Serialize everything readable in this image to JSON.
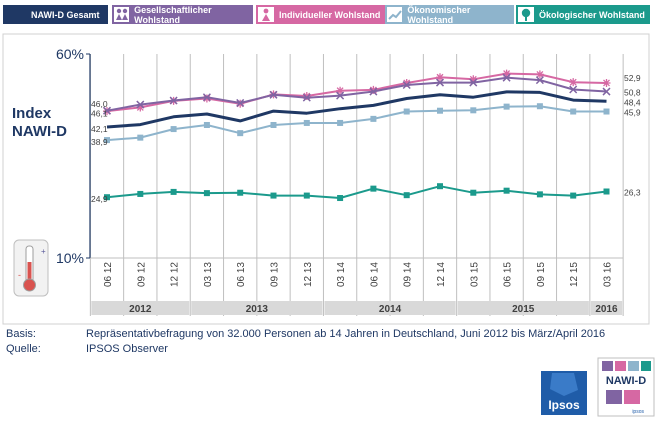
{
  "legend": [
    {
      "label": "NAWI-D Gesamt",
      "color": "#1f3864",
      "icon": "none"
    },
    {
      "label": "Gesellschaftlicher Wohlstand",
      "color": "#8064a2",
      "icon": "people-icon"
    },
    {
      "label": "Individueller Wohlstand",
      "color": "#d668a3",
      "icon": "person-icon"
    },
    {
      "label": "Ökonomischer Wohlstand",
      "color": "#8eb4cc",
      "icon": "trend-icon"
    },
    {
      "label": "Ökologischer Wohlstand",
      "color": "#1b9a8c",
      "icon": "tree-icon"
    }
  ],
  "chart_data": {
    "type": "line",
    "ylabel": "Index NAWI-D",
    "yunit": "%",
    "ylim": [
      10,
      60
    ],
    "ytick_labels": [
      "60%",
      "10%"
    ],
    "categories": [
      "06 12",
      "09 12",
      "12 12",
      "03 13",
      "06 13",
      "09 13",
      "12 13",
      "03 14",
      "06 14",
      "09 14",
      "12 14",
      "03 15",
      "06 15",
      "09 15",
      "12 15",
      "03 16"
    ],
    "years": [
      {
        "label": "2012",
        "from": 0,
        "to": 2
      },
      {
        "label": "2013",
        "from": 3,
        "to": 6
      },
      {
        "label": "2014",
        "from": 7,
        "to": 10
      },
      {
        "label": "2015",
        "from": 11,
        "to": 14
      },
      {
        "label": "2016",
        "from": 15,
        "to": 15
      }
    ],
    "series": [
      {
        "name": "Individueller Wohlstand",
        "color": "#d668a3",
        "marker": "star",
        "values": [
          46.0,
          46.9,
          48.5,
          49.1,
          47.8,
          50.1,
          49.7,
          51.0,
          51.2,
          52.9,
          54.3,
          53.8,
          55.2,
          55.0,
          53.1,
          52.9
        ],
        "first_label": "46,0",
        "last_label": "52,9"
      },
      {
        "name": "Gesellschaftlicher Wohlstand",
        "color": "#8064a2",
        "marker": "x",
        "values": [
          46.1,
          47.6,
          48.6,
          49.4,
          48.0,
          50.0,
          49.3,
          49.8,
          50.8,
          52.4,
          53.0,
          53.0,
          54.2,
          53.6,
          51.3,
          50.8
        ],
        "first_label": "46,1",
        "last_label": "50,8"
      },
      {
        "name": "NAWI-D Gesamt",
        "color": "#1f3864",
        "marker": "none",
        "values": [
          42.1,
          42.7,
          44.6,
          45.3,
          43.6,
          46.0,
          45.5,
          46.6,
          47.4,
          49.1,
          50.0,
          49.4,
          50.7,
          50.6,
          48.7,
          48.4
        ],
        "first_label": "42,1",
        "last_label": "48,4"
      },
      {
        "name": "Ökonomischer Wohlstand",
        "color": "#8eb4cc",
        "marker": "square",
        "values": [
          38.9,
          39.5,
          41.6,
          42.6,
          40.6,
          42.6,
          43.1,
          43.1,
          44.1,
          45.9,
          46.1,
          46.2,
          47.1,
          47.2,
          45.9,
          45.9
        ],
        "first_label": "38,9",
        "last_label": "45,9"
      },
      {
        "name": "Ökologischer Wohlstand",
        "color": "#1b9a8c",
        "marker": "square",
        "values": [
          24.9,
          25.7,
          26.2,
          25.9,
          26.0,
          25.3,
          25.3,
          24.7,
          27.0,
          25.4,
          27.6,
          26.0,
          26.5,
          25.6,
          25.3,
          26.3
        ],
        "first_label": "24,9",
        "last_label": "26,3"
      }
    ]
  },
  "footer": {
    "basis_label": "Basis:",
    "basis_text": "Repräsentativbefragung von 32.000 Personen ab 14 Jahren in Deutschland, Juni 2012 bis März/April 2016",
    "source_label": "Quelle:",
    "source_text": "IPSOS Observer"
  },
  "logos": {
    "ipsos": "Ipsos",
    "nawi": "NAWI-D",
    "nawi_sub": "ipsos"
  }
}
